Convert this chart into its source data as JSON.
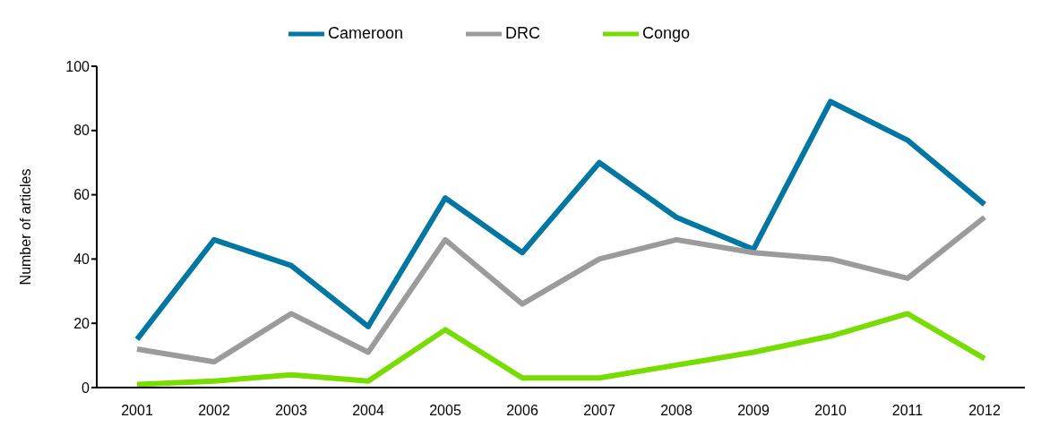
{
  "chart_data": {
    "type": "line",
    "ylabel": "Number of articles",
    "categories": [
      "2001",
      "2002",
      "2003",
      "2004",
      "2005",
      "2006",
      "2007",
      "2008",
      "2009",
      "2010",
      "2011",
      "2012"
    ],
    "series": [
      {
        "name": "Cameroon",
        "color": "#0077a3",
        "values": [
          15,
          46,
          38,
          19,
          59,
          42,
          70,
          53,
          43,
          89,
          77,
          57
        ]
      },
      {
        "name": "DRC",
        "color": "#9b9b9b",
        "values": [
          12,
          8,
          23,
          11,
          46,
          26,
          40,
          46,
          42,
          40,
          34,
          53
        ]
      },
      {
        "name": "Congo",
        "color": "#77dd00",
        "values": [
          1,
          2,
          4,
          2,
          18,
          3,
          3,
          7,
          11,
          16,
          23,
          9
        ]
      }
    ],
    "ylim": [
      0,
      100
    ],
    "yticks": [
      0,
      20,
      40,
      60,
      80,
      100
    ],
    "grid": false,
    "legend": "top",
    "marker": "none",
    "line_style": "solid"
  }
}
